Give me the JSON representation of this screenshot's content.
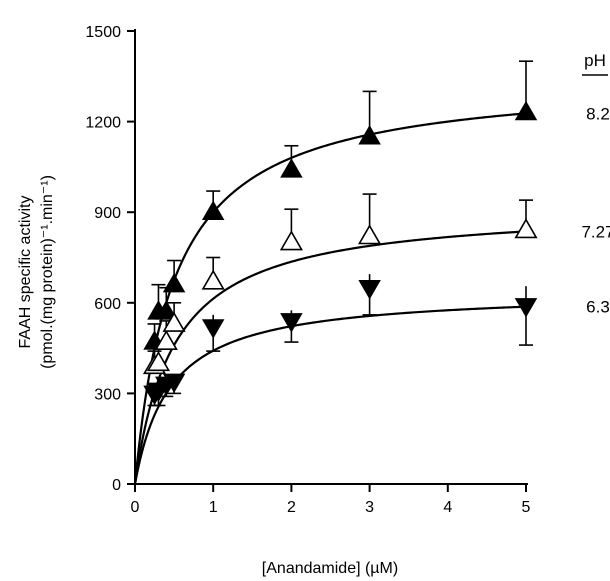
{
  "chart_data": {
    "type": "scatter",
    "xlabel": "[Anandamide] (µM)",
    "ylabel_line1": "FAAH specific activity",
    "ylabel_line2": "(pmol.(mg protein)⁻¹.min⁻¹)",
    "legend_title": "pH",
    "xlim": [
      0,
      5
    ],
    "ylim": [
      0,
      1500
    ],
    "x_ticks": [
      "0",
      "1",
      "2",
      "3",
      "4",
      "5"
    ],
    "y_ticks": [
      "0",
      "300",
      "600",
      "900",
      "1200",
      "1500"
    ],
    "grid": false,
    "series": [
      {
        "name": "8.2",
        "marker": "triangle-up-filled",
        "fit": {
          "vmax": 1350,
          "km": 0.5
        },
        "points": [
          {
            "x": 0.25,
            "y": 470,
            "err": 60
          },
          {
            "x": 0.3,
            "y": 570,
            "err": 90
          },
          {
            "x": 0.4,
            "y": 570,
            "err": 80
          },
          {
            "x": 0.5,
            "y": 660,
            "err": 80
          },
          {
            "x": 1.0,
            "y": 900,
            "err": 70
          },
          {
            "x": 2.0,
            "y": 1040,
            "err": 80
          },
          {
            "x": 3.0,
            "y": 1150,
            "err": 150
          },
          {
            "x": 5.0,
            "y": 1230,
            "err": 170
          }
        ]
      },
      {
        "name": "7.27",
        "marker": "triangle-up-open",
        "fit": {
          "vmax": 920,
          "km": 0.5
        },
        "points": [
          {
            "x": 0.25,
            "y": 390,
            "err": 50
          },
          {
            "x": 0.3,
            "y": 400,
            "err": 60
          },
          {
            "x": 0.4,
            "y": 470,
            "err": 70
          },
          {
            "x": 0.5,
            "y": 530,
            "err": 70
          },
          {
            "x": 1.0,
            "y": 670,
            "err": 80
          },
          {
            "x": 2.0,
            "y": 800,
            "err": 110
          },
          {
            "x": 3.0,
            "y": 820,
            "err": 140
          },
          {
            "x": 5.0,
            "y": 840,
            "err": 100
          }
        ]
      },
      {
        "name": "6.3",
        "marker": "triangle-down-filled",
        "fit": {
          "vmax": 640,
          "km": 0.45
        },
        "points": [
          {
            "x": 0.25,
            "y": 300,
            "err": 40
          },
          {
            "x": 0.3,
            "y": 310,
            "err": 50
          },
          {
            "x": 0.4,
            "y": 330,
            "err": 40
          },
          {
            "x": 0.5,
            "y": 340,
            "err": 40
          },
          {
            "x": 1.0,
            "y": 520,
            "err": 80
          },
          {
            "x": 2.0,
            "y": 540,
            "err": 70
          },
          {
            "x": 3.0,
            "y": 650,
            "err": 90
          },
          {
            "x": 5.0,
            "y": 590,
            "err": 130
          }
        ]
      }
    ]
  }
}
